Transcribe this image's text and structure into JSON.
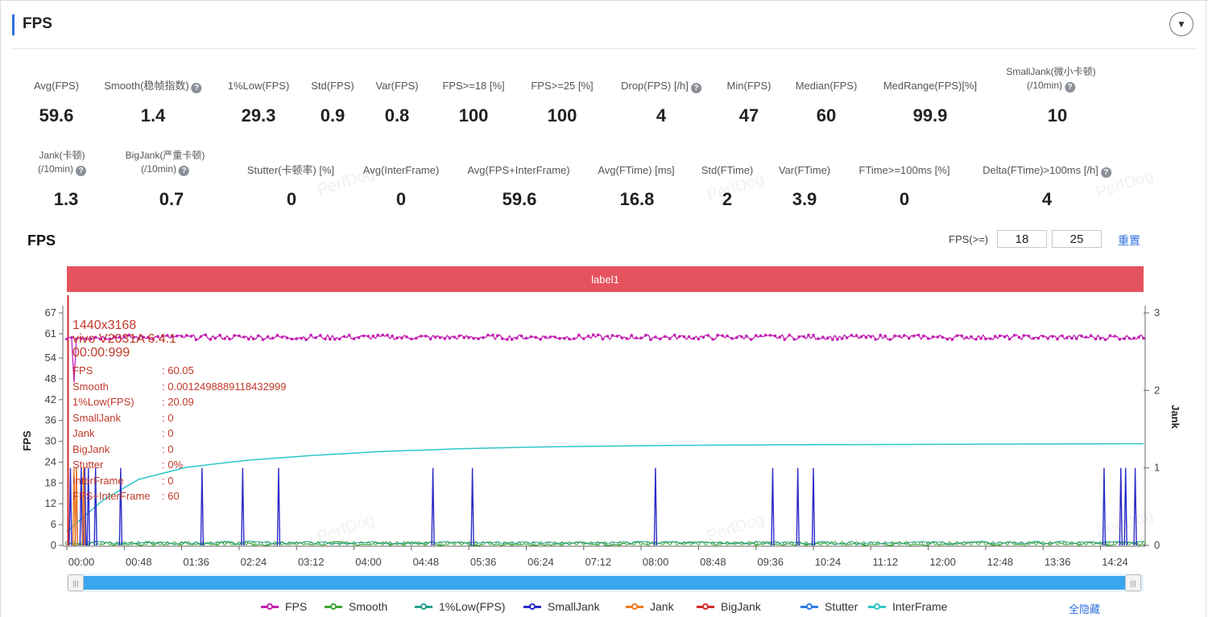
{
  "header": {
    "title": "FPS"
  },
  "metrics_row1": [
    {
      "label": "Avg(FPS)",
      "value": "59.6",
      "help": false
    },
    {
      "label": "Smooth(稳帧指数)",
      "value": "1.4",
      "help": true
    },
    {
      "label": "1%Low(FPS)",
      "value": "29.3",
      "help": false
    },
    {
      "label": "Std(FPS)",
      "value": "0.9",
      "help": false
    },
    {
      "label": "Var(FPS)",
      "value": "0.8",
      "help": false
    },
    {
      "label": "FPS>=18 [%]",
      "value": "100",
      "help": false
    },
    {
      "label": "FPS>=25 [%]",
      "value": "100",
      "help": false
    },
    {
      "label": "Drop(FPS) [/h]",
      "value": "4",
      "help": true
    },
    {
      "label": "Min(FPS)",
      "value": "47",
      "help": false
    },
    {
      "label": "Median(FPS)",
      "value": "60",
      "help": false
    },
    {
      "label": "MedRange(FPS)[%]",
      "value": "99.9",
      "help": false
    },
    {
      "label": "SmallJank(微小卡顿)",
      "label2": "(/10min)",
      "value": "10",
      "help": true
    }
  ],
  "metrics_row2": [
    {
      "label": "Jank(卡顿)",
      "label2": "(/10min)",
      "value": "1.3",
      "help": true
    },
    {
      "label": "BigJank(严重卡顿)",
      "label2": "(/10min)",
      "value": "0.7",
      "help": true
    },
    {
      "label": "Stutter(卡顿率) [%]",
      "value": "0",
      "help": false
    },
    {
      "label": "Avg(InterFrame)",
      "value": "0",
      "help": false
    },
    {
      "label": "Avg(FPS+InterFrame)",
      "value": "59.6",
      "help": false
    },
    {
      "label": "Avg(FTime) [ms]",
      "value": "16.8",
      "help": false
    },
    {
      "label": "Std(FTime)",
      "value": "2",
      "help": false
    },
    {
      "label": "Var(FTime)",
      "value": "3.9",
      "help": false
    },
    {
      "label": "FTime>=100ms [%]",
      "value": "0",
      "help": false
    },
    {
      "label": "Delta(FTime)>100ms [/h]",
      "value": "4",
      "help": true
    }
  ],
  "watermark": "PerfDog",
  "chart_toolbar": {
    "title": "FPS",
    "threshold_label": "FPS(>=)",
    "threshold_low": "18",
    "threshold_high": "25",
    "reset_label": "重置"
  },
  "label_band": "label1",
  "tooltip": {
    "resolution": "1440x3168",
    "device": "vivo V2031A 6.4.1",
    "time": "00:00:999",
    "rows": [
      {
        "key": "FPS",
        "value": ": 60.05"
      },
      {
        "key": "Smooth",
        "value": ": 0.0012498889118432999"
      },
      {
        "key": "1%Low(FPS)",
        "value": ": 20.09"
      },
      {
        "key": "SmallJank",
        "value": ": 0"
      },
      {
        "key": "Jank",
        "value": ": 0"
      },
      {
        "key": "BigJank",
        "value": ": 0"
      },
      {
        "key": "Stutter",
        "value": ": 0%"
      },
      {
        "key": "InterFrame",
        "value": ": 0"
      },
      {
        "key": "FPS+InterFrame",
        "value": ": 60"
      }
    ]
  },
  "legend_hide_all": "全隐藏",
  "colors": {
    "FPS": "#c21fb3",
    "Smooth": "#3aa636",
    "1%Low(FPS)": "#23a08f",
    "SmallJank": "#2b2bc9",
    "Jank": "#f07a1e",
    "BigJank": "#d62a2a",
    "Stutter": "#2f7be8",
    "InterFrame": "#2ec7c9"
  },
  "chart_data": {
    "type": "line",
    "y_left_label": "FPS",
    "y_right_label": "Jank",
    "y_left_ticks": [
      0,
      6,
      12,
      18,
      24,
      30,
      36,
      42,
      48,
      54,
      61,
      67
    ],
    "y_left_range": [
      0,
      67
    ],
    "y_right_ticks": [
      0,
      1,
      2,
      3
    ],
    "y_right_range": [
      0,
      3
    ],
    "x_ticks": [
      "00:00",
      "00:48",
      "01:36",
      "02:24",
      "03:12",
      "04:00",
      "04:48",
      "05:36",
      "06:24",
      "07:12",
      "08:00",
      "08:48",
      "09:36",
      "10:24",
      "11:12",
      "12:00",
      "12:48",
      "13:36",
      "14:24"
    ],
    "x_range_sec": [
      0,
      900
    ],
    "series": [
      {
        "name": "FPS",
        "axis": "left",
        "approx_value": 60,
        "range": [
          59,
          61
        ],
        "note_values": [
          47,
          60.05
        ]
      },
      {
        "name": "Smooth",
        "axis": "left",
        "approx_value": 0.5
      },
      {
        "name": "1%Low(FPS)",
        "axis": "left",
        "approx_value": 0.8
      },
      {
        "name": "SmallJank",
        "axis": "right",
        "spikes_sec": [
          3,
          8,
          12,
          15,
          18,
          24,
          45,
          113,
          147,
          177,
          306,
          339,
          492,
          590,
          611,
          624,
          867,
          881,
          885,
          893
        ],
        "spike_value": 1
      },
      {
        "name": "Jank",
        "axis": "right",
        "spikes_sec": [
          6,
          8,
          14
        ],
        "spike_value": 1
      },
      {
        "name": "BigJank",
        "axis": "right",
        "spikes_sec": [
          1
        ],
        "spike_value": 3
      },
      {
        "name": "Stutter",
        "axis": "left",
        "approx_value": 0
      },
      {
        "name": "InterFrame",
        "axis": "left",
        "x_sec": [
          0,
          30,
          60,
          100,
          150,
          200,
          260,
          330,
          400,
          500,
          600,
          700,
          800,
          900
        ],
        "values": [
          4,
          13,
          19,
          22.5,
          24.5,
          25.8,
          27,
          27.9,
          28.4,
          28.8,
          29.0,
          29.1,
          29.2,
          29.3
        ]
      }
    ]
  }
}
